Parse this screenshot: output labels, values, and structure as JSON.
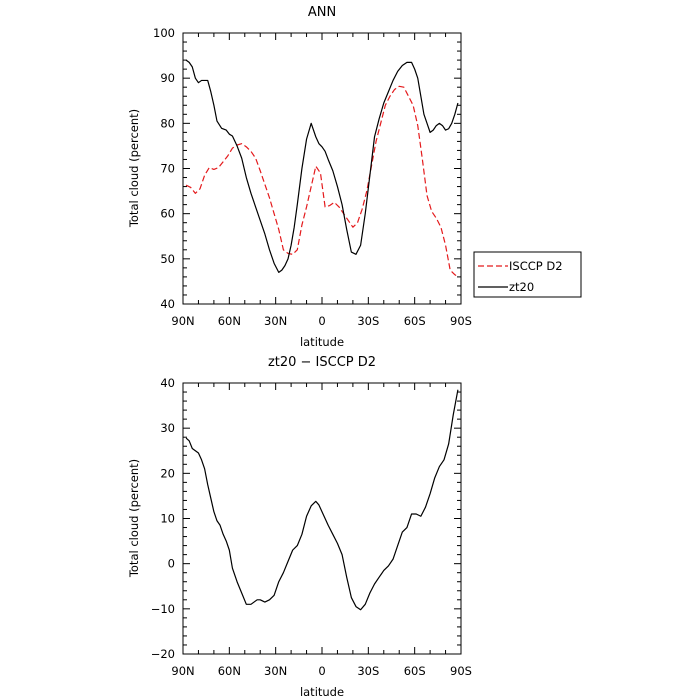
{
  "chart_data": [
    {
      "type": "line",
      "title": "ANN",
      "xlabel": "latitude",
      "ylabel": "Total cloud (percent)",
      "xlim": [
        90,
        -90
      ],
      "ylim": [
        40,
        100
      ],
      "x_ticks": [
        90,
        60,
        30,
        0,
        -30,
        -60,
        -90
      ],
      "x_tick_labels": [
        "90N",
        "60N",
        "30N",
        "0",
        "30S",
        "60S",
        "90S"
      ],
      "y_ticks": [
        40,
        50,
        60,
        70,
        80,
        90,
        100
      ],
      "y_tick_labels": [
        "40",
        "50",
        "60",
        "70",
        "80",
        "90",
        "100"
      ],
      "grid": false,
      "legend_position": "outside-right",
      "series": [
        {
          "name": "ISCCP D2",
          "color": "#e41a1c",
          "dash": "dashed",
          "x": [
            88,
            85,
            82,
            79,
            76,
            73,
            70,
            67,
            64,
            61,
            58,
            55,
            52,
            49,
            46,
            43,
            40,
            37,
            34,
            31,
            28,
            25,
            22,
            19,
            16,
            13,
            10,
            7,
            4,
            1,
            -2,
            -5,
            -8,
            -11,
            -14,
            -17,
            -20,
            -23,
            -26,
            -29,
            -32,
            -35,
            -38,
            -41,
            -44,
            -47,
            -50,
            -53,
            -56,
            -59,
            -62,
            -65,
            -68,
            -71,
            -74,
            -77,
            -80,
            -83,
            -86,
            -88
          ],
          "y": [
            66.3,
            65.8,
            64.5,
            65.5,
            68.5,
            70.2,
            69.8,
            70.2,
            71.5,
            72.8,
            74.5,
            75.2,
            75.5,
            74.8,
            73.8,
            72.3,
            69.5,
            66.5,
            63.5,
            60.0,
            56.5,
            52.0,
            51.2,
            51.0,
            52.0,
            57.5,
            61.5,
            66.0,
            70.5,
            69.0,
            61.5,
            61.8,
            62.5,
            61.5,
            60.0,
            58.5,
            57.0,
            58.0,
            61.0,
            65.0,
            70.5,
            76.0,
            80.0,
            84.0,
            86.0,
            87.5,
            88.2,
            88.0,
            86.0,
            84.0,
            79.5,
            72.0,
            64.0,
            60.5,
            59.0,
            57.0,
            53.0,
            47.5,
            46.5,
            46.0
          ]
        },
        {
          "name": "zt20",
          "color": "#000000",
          "dash": "solid",
          "x": [
            88,
            86,
            84,
            82,
            80,
            78,
            76,
            74,
            72,
            70,
            68,
            65,
            62,
            60,
            58,
            55,
            52,
            49,
            46,
            43,
            40,
            37,
            34,
            31,
            28,
            26,
            24,
            22,
            20,
            18,
            16,
            13,
            10,
            7,
            4,
            2,
            0,
            -2,
            -4,
            -7,
            -10,
            -13,
            -16,
            -19,
            -22,
            -25,
            -28,
            -31,
            -34,
            -37,
            -40,
            -43,
            -46,
            -49,
            -52,
            -55,
            -58,
            -60,
            -62,
            -64,
            -66,
            -68,
            -70,
            -72,
            -74,
            -76,
            -78,
            -80,
            -82,
            -84,
            -86,
            -88
          ],
          "y": [
            94.0,
            93.5,
            92.5,
            90.0,
            89.0,
            89.5,
            89.5,
            89.5,
            87.0,
            84.0,
            80.5,
            78.9,
            78.5,
            77.6,
            77.2,
            75.0,
            72.3,
            68.0,
            64.5,
            61.5,
            58.5,
            55.5,
            52.0,
            49.0,
            47.0,
            47.5,
            48.5,
            50.0,
            53.0,
            57.0,
            62.0,
            70.0,
            76.5,
            80.0,
            77.0,
            75.5,
            74.8,
            73.8,
            72.0,
            69.5,
            66.0,
            62.0,
            56.5,
            51.5,
            51.0,
            53.0,
            60.0,
            68.5,
            77.0,
            81.0,
            84.5,
            87.0,
            89.5,
            91.5,
            92.8,
            93.5,
            93.5,
            92.0,
            90.0,
            86.0,
            82.0,
            80.0,
            78.0,
            78.5,
            79.5,
            80.0,
            79.5,
            78.5,
            78.8,
            80.0,
            82.0,
            84.5
          ]
        }
      ]
    },
    {
      "type": "line",
      "title": "zt20 − ISCCP D2",
      "xlabel": "latitude",
      "ylabel": "Total cloud (percent)",
      "xlim": [
        90,
        -90
      ],
      "ylim": [
        -20,
        40
      ],
      "x_ticks": [
        90,
        60,
        30,
        0,
        -30,
        -60,
        -90
      ],
      "x_tick_labels": [
        "90N",
        "60N",
        "30N",
        "0",
        "30S",
        "60S",
        "90S"
      ],
      "y_ticks": [
        -20,
        -10,
        0,
        10,
        20,
        30,
        40
      ],
      "y_tick_labels": [
        "−20",
        "−10",
        "0",
        "10",
        "20",
        "30",
        "40"
      ],
      "grid": false,
      "series": [
        {
          "color": "#000000",
          "dash": "solid",
          "x": [
            88,
            86,
            84,
            82,
            80,
            78,
            76,
            74,
            72,
            70,
            68,
            66,
            64,
            62,
            60,
            58,
            55,
            52,
            49,
            46,
            44,
            42,
            40,
            37,
            34,
            31,
            28,
            25,
            22,
            19,
            16,
            13,
            10,
            7,
            4,
            2,
            0,
            -2,
            -4,
            -7,
            -10,
            -13,
            -16,
            -19,
            -22,
            -25,
            -28,
            -31,
            -34,
            -37,
            -40,
            -43,
            -46,
            -49,
            -52,
            -55,
            -58,
            -61,
            -64,
            -67,
            -70,
            -73,
            -76,
            -79,
            -82,
            -85,
            -88
          ],
          "y": [
            27.8,
            27.2,
            25.5,
            25.0,
            24.5,
            23.0,
            21.0,
            17.5,
            14.5,
            11.5,
            9.5,
            8.5,
            6.5,
            5.0,
            3.0,
            -1.0,
            -4.0,
            -6.5,
            -9.0,
            -9.0,
            -8.5,
            -8.0,
            -8.0,
            -8.5,
            -8.0,
            -7.0,
            -4.0,
            -2.0,
            0.5,
            3.0,
            4.0,
            6.5,
            10.5,
            12.8,
            13.8,
            13.0,
            11.5,
            10.0,
            8.5,
            6.5,
            4.5,
            2.0,
            -3.0,
            -7.5,
            -9.5,
            -10.2,
            -9.0,
            -6.5,
            -4.5,
            -3.0,
            -1.5,
            -0.5,
            1.0,
            4.0,
            7.0,
            8.0,
            11.0,
            11.0,
            10.5,
            12.5,
            15.5,
            19.0,
            21.5,
            23.0,
            26.5,
            33.0,
            38.5
          ]
        }
      ]
    }
  ]
}
